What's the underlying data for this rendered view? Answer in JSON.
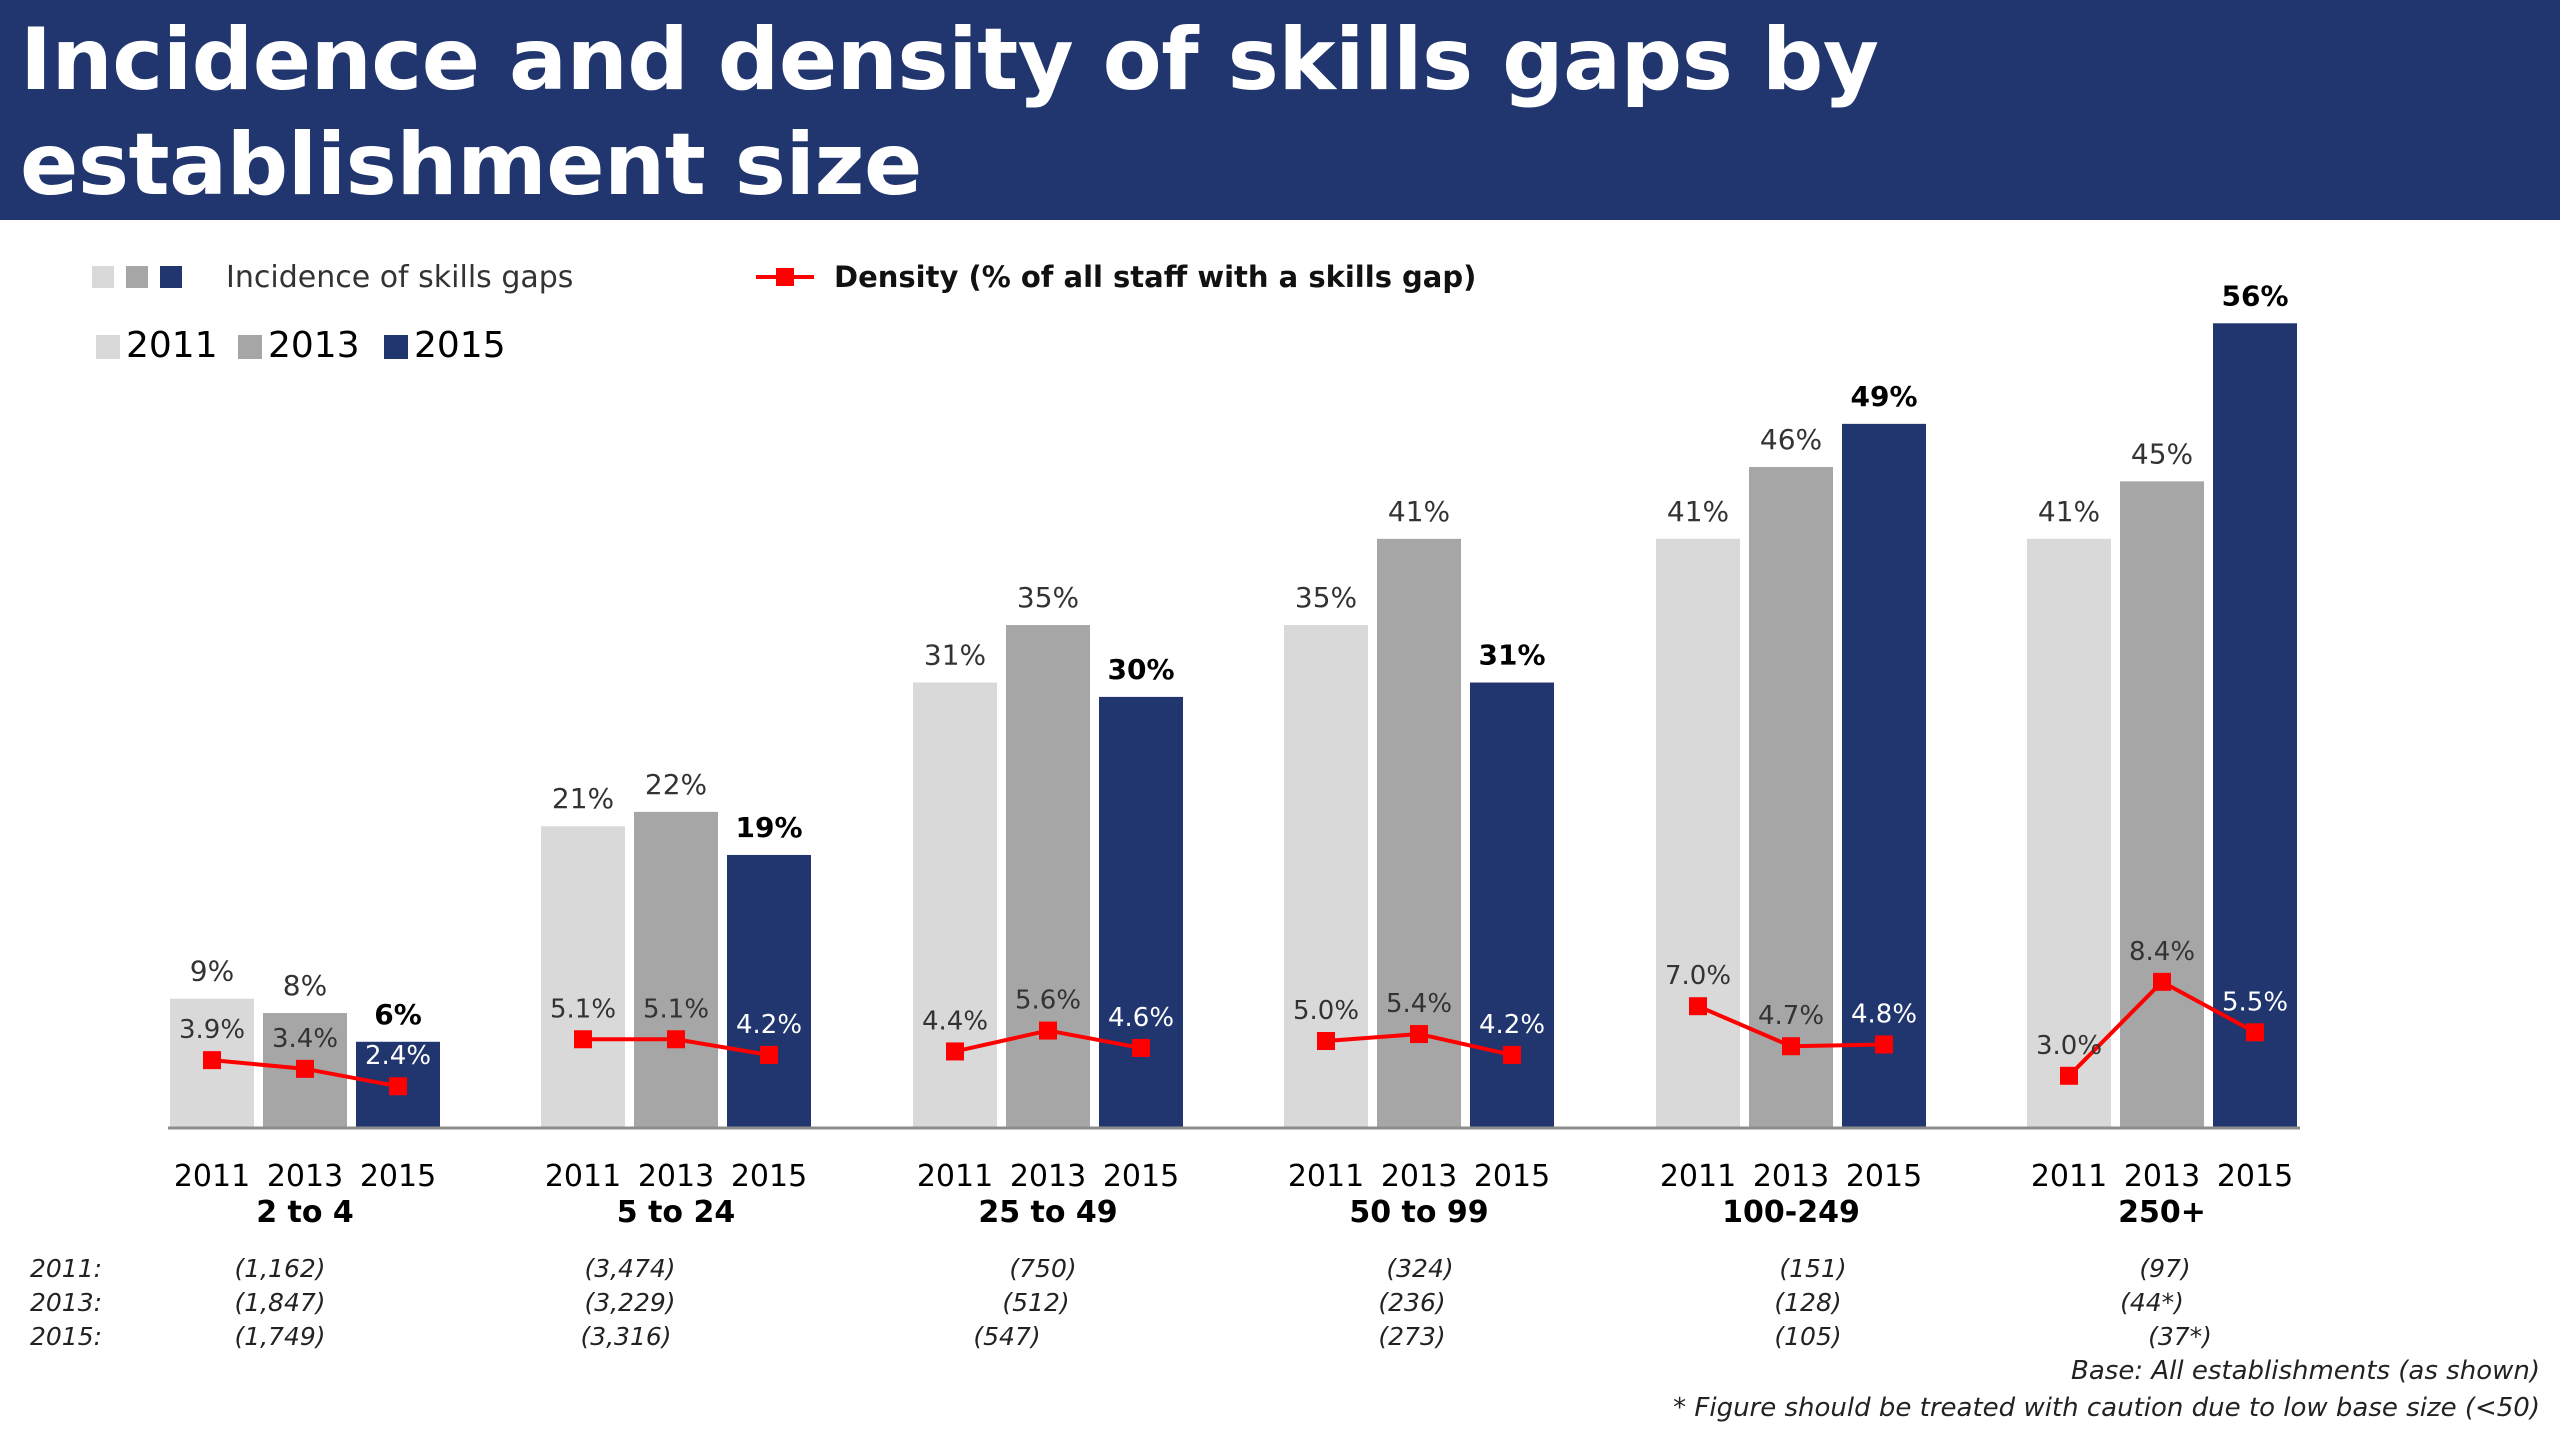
{
  "header": {
    "title": "Incidence and density of skills gaps by establishment size"
  },
  "legend": {
    "incidence_label": "Incidence of skills gaps",
    "density_label": "Density (% of all staff with a skills gap)",
    "years": [
      "2011",
      "2013",
      "2015"
    ]
  },
  "colors": {
    "title_band": "#21366f",
    "bar_2011": "#d9d9d9",
    "bar_2013": "#a6a6a6",
    "bar_2015": "#21366f",
    "density_line": "#ff0000"
  },
  "chart_data": {
    "type": "bar",
    "title": "Incidence and density of skills gaps by establishment size",
    "categories": [
      "2 to 4",
      "5 to 24",
      "25 to 49",
      "50 to 99",
      "100-249",
      "250+"
    ],
    "ylim": [
      0,
      60
    ],
    "series": [
      {
        "name": "2011",
        "values": [
          9,
          21,
          31,
          35,
          41,
          41
        ],
        "labels": [
          "9%",
          "21%",
          "31%",
          "35%",
          "41%",
          "41%"
        ]
      },
      {
        "name": "2013",
        "values": [
          8,
          22,
          35,
          41,
          46,
          45
        ],
        "labels": [
          "8%",
          "22%",
          "35%",
          "41%",
          "46%",
          "45%"
        ]
      },
      {
        "name": "2015",
        "values": [
          6,
          19,
          30,
          31,
          49,
          56
        ],
        "labels": [
          "6%",
          "19%",
          "30%",
          "31%",
          "49%",
          "56%"
        ]
      }
    ],
    "density": {
      "name": "Density (% of all staff with a skills gap)",
      "values": [
        [
          3.9,
          3.4,
          2.4
        ],
        [
          5.1,
          5.1,
          4.2
        ],
        [
          4.4,
          5.6,
          4.6
        ],
        [
          5.0,
          5.4,
          4.2
        ],
        [
          7.0,
          4.7,
          4.8
        ],
        [
          3.0,
          8.4,
          5.5
        ]
      ],
      "labels": [
        [
          "3.9%",
          "3.4%",
          "2.4%"
        ],
        [
          "5.1%",
          "5.1%",
          "4.2%"
        ],
        [
          "4.4%",
          "5.6%",
          "4.6%"
        ],
        [
          "5.0%",
          "5.4%",
          "4.2%"
        ],
        [
          "7.0%",
          "4.7%",
          "4.8%"
        ],
        [
          "3.0%",
          "8.4%",
          "5.5%"
        ]
      ]
    },
    "base_sizes": {
      "row_labels": [
        "2011:",
        "2013:",
        "2015:"
      ],
      "values": [
        [
          "(1,162)",
          "(1,847)",
          "(1,749)"
        ],
        [
          "(3,474)",
          "(3,229)",
          "(3,316)"
        ],
        [
          "(750)",
          "(512)",
          "(547)"
        ],
        [
          "(324)",
          "(236)",
          "(273)"
        ],
        [
          "(151)",
          "(128)",
          "(105)"
        ],
        [
          "(97)",
          "(44*)",
          "(37*)"
        ]
      ]
    }
  },
  "footer": {
    "base_note": "Base: All establishments (as shown)",
    "caution_note": "* Figure should be treated with caution due to low base size (<50)"
  }
}
